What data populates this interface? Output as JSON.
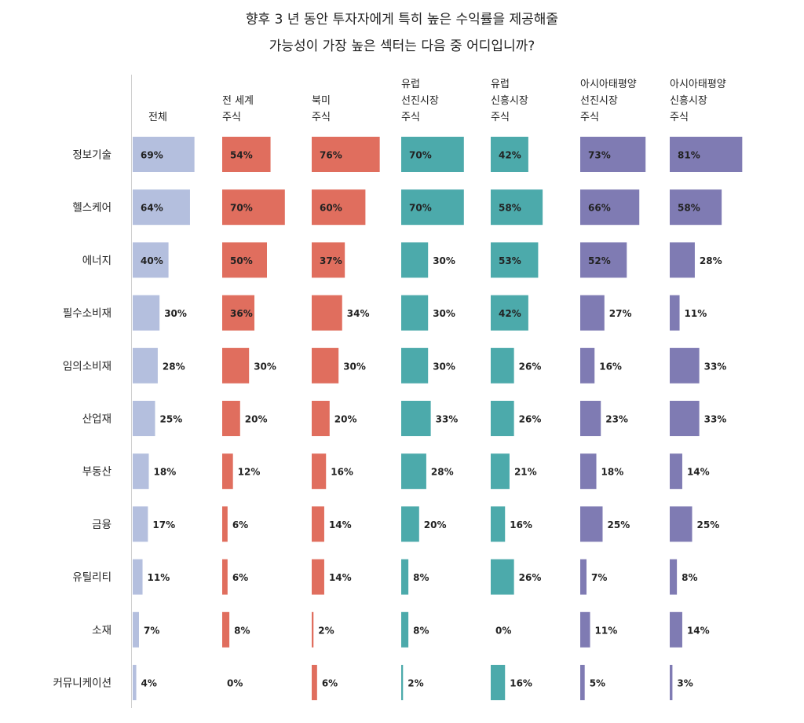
{
  "chart_data": {
    "type": "bar",
    "title_line1": "향후 3 년 동안 투자자에게 특히 높은 수익률을 제공해줄",
    "title_line2": "가능성이 가장 높은 섹터는 다음 중 어디입니까?",
    "value_suffix": "%",
    "max_value": 100,
    "categories": [
      "정보기술",
      "헬스케어",
      "에너지",
      "필수소비재",
      "임의소비재",
      "산업재",
      "부동산",
      "금융",
      "유틸리티",
      "소재",
      "커뮤니케이션"
    ],
    "series": [
      {
        "name_lines": [
          "전체"
        ],
        "color": "#b4bfde",
        "values": [
          69,
          64,
          40,
          30,
          28,
          25,
          18,
          17,
          11,
          7,
          4
        ]
      },
      {
        "name_lines": [
          "전 세계",
          "주식"
        ],
        "color": "#e06e5e",
        "values": [
          54,
          70,
          50,
          36,
          30,
          20,
          12,
          6,
          6,
          8,
          0
        ]
      },
      {
        "name_lines": [
          "북미",
          "주식"
        ],
        "color": "#e06e5e",
        "values": [
          76,
          60,
          37,
          34,
          30,
          20,
          16,
          14,
          14,
          2,
          6
        ]
      },
      {
        "name_lines": [
          "유럽",
          "선진시장",
          "주식"
        ],
        "color": "#4caaab",
        "values": [
          70,
          70,
          30,
          30,
          30,
          33,
          28,
          20,
          8,
          8,
          2
        ]
      },
      {
        "name_lines": [
          "유럽",
          "신흥시장",
          "주식"
        ],
        "color": "#4caaab",
        "values": [
          42,
          58,
          53,
          42,
          26,
          26,
          21,
          16,
          26,
          0,
          16
        ]
      },
      {
        "name_lines": [
          "아시아태평양",
          "선진시장",
          "주식"
        ],
        "color": "#7f7bb3",
        "values": [
          73,
          66,
          52,
          27,
          16,
          23,
          18,
          25,
          7,
          11,
          5
        ]
      },
      {
        "name_lines": [
          "아시아태평양",
          "신흥시장",
          "주식"
        ],
        "color": "#7f7bb3",
        "values": [
          81,
          58,
          28,
          11,
          33,
          33,
          14,
          25,
          8,
          14,
          3
        ]
      }
    ]
  }
}
